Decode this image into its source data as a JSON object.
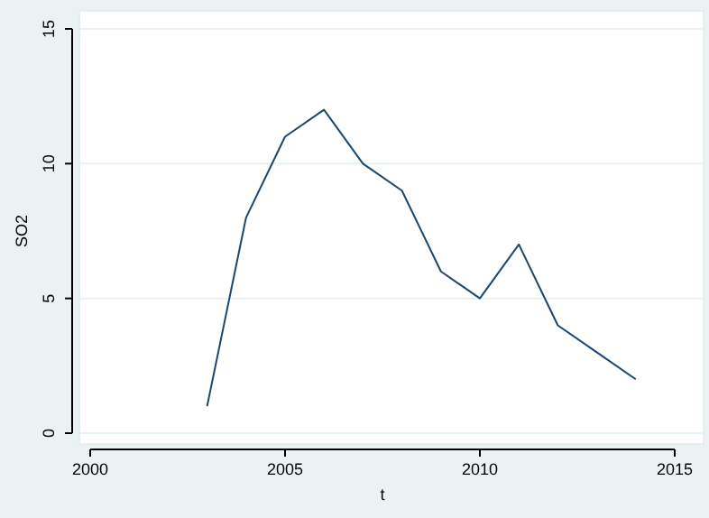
{
  "chart_data": {
    "type": "line",
    "xlabel": "t",
    "ylabel": "SO2",
    "x": [
      2003,
      2004,
      2005,
      2006,
      2007,
      2008,
      2009,
      2010,
      2011,
      2012,
      2013,
      2014
    ],
    "series": [
      {
        "color": "#1a476f",
        "values": [
          1,
          8,
          11,
          12,
          10,
          9,
          6,
          5,
          7,
          4,
          3,
          2
        ]
      }
    ],
    "xlim": [
      2000,
      2015
    ],
    "xticks": [
      2000,
      2005,
      2010,
      2015
    ],
    "ylim": [
      0,
      15
    ],
    "yticks": [
      0,
      5,
      10,
      15
    ],
    "grid": "y",
    "marker": "none",
    "line_style": "solid"
  }
}
